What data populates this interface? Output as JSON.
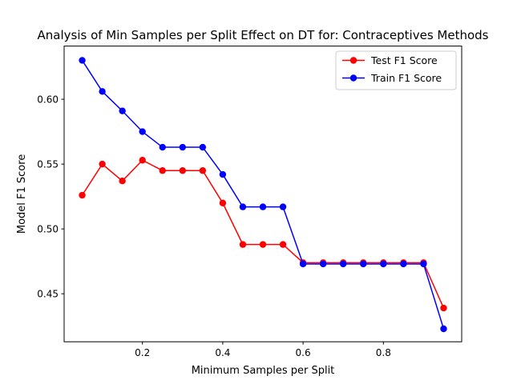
{
  "chart_data": {
    "type": "line",
    "title": "Analysis of Min Samples per Split Effect on DT for: Contraceptives Methods",
    "xlabel": "Minimum Samples per Split",
    "ylabel": "Model F1 Score",
    "xlim": [
      0.005,
      0.995
    ],
    "ylim": [
      0.413,
      0.641
    ],
    "xticks": [
      0.2,
      0.4,
      0.6,
      0.8
    ],
    "xtick_labels": [
      "0.2",
      "0.4",
      "0.6",
      "0.8"
    ],
    "yticks": [
      0.45,
      0.5,
      0.55,
      0.6
    ],
    "ytick_labels": [
      "0.45",
      "0.50",
      "0.55",
      "0.60"
    ],
    "grid": false,
    "legend_position": "top-right",
    "x": [
      0.05,
      0.1,
      0.15,
      0.2,
      0.25,
      0.3,
      0.35,
      0.4,
      0.45,
      0.5,
      0.55,
      0.6,
      0.65,
      0.7,
      0.75,
      0.8,
      0.85,
      0.9,
      0.95
    ],
    "series": [
      {
        "name": "Test F1 Score",
        "color": "#ff0000",
        "values": [
          0.526,
          0.55,
          0.537,
          0.553,
          0.545,
          0.545,
          0.545,
          0.52,
          0.488,
          0.488,
          0.488,
          0.474,
          0.474,
          0.474,
          0.474,
          0.474,
          0.474,
          0.474,
          0.439
        ]
      },
      {
        "name": "Train F1 Score",
        "color": "#0000ff",
        "values": [
          0.63,
          0.606,
          0.591,
          0.575,
          0.563,
          0.563,
          0.563,
          0.542,
          0.517,
          0.517,
          0.517,
          0.473,
          0.473,
          0.473,
          0.473,
          0.473,
          0.473,
          0.473,
          0.423
        ]
      }
    ]
  }
}
